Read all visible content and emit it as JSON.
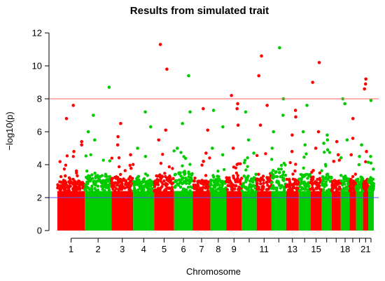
{
  "chart_data": {
    "type": "scatter",
    "subtype": "manhattan",
    "title": "Results from simulated trait",
    "xlabel": "Chromosome",
    "ylabel": "−log10(p)",
    "ylim": [
      0,
      12
    ],
    "y_ticks": [
      0,
      2,
      4,
      6,
      8,
      10,
      12
    ],
    "grid": false,
    "colors": {
      "odd": "#ff0000",
      "even": "#00cc00",
      "significance_line": "#ff6666",
      "suggestive_line": "#5555ff"
    },
    "significance_threshold": 8,
    "suggestive_threshold": 2,
    "x_tick_labels": [
      "1",
      "2",
      "3",
      "4",
      "5",
      "6",
      "7",
      "8",
      "9",
      "11",
      "13",
      "15",
      "18",
      "21"
    ],
    "chromosomes": [
      {
        "chr": 1,
        "labeled": true,
        "dense_max": 3.0,
        "top_hits": [
          7.6,
          6.8,
          5.4,
          5.2,
          4.8
        ]
      },
      {
        "chr": 2,
        "labeled": true,
        "dense_max": 3.3,
        "top_hits": [
          8.7,
          7.0,
          6.0,
          5.5
        ]
      },
      {
        "chr": 3,
        "labeled": true,
        "dense_max": 3.2,
        "top_hits": [
          6.5,
          5.7,
          5.2,
          4.6
        ]
      },
      {
        "chr": 4,
        "labeled": true,
        "dense_max": 3.0,
        "top_hits": [
          7.2,
          6.3,
          5.0,
          4.5
        ]
      },
      {
        "chr": 5,
        "labeled": true,
        "dense_max": 3.3,
        "top_hits": [
          11.3,
          9.8,
          6.1,
          5.5
        ]
      },
      {
        "chr": 6,
        "labeled": true,
        "dense_max": 3.5,
        "top_hits": [
          9.4,
          7.2,
          6.5,
          5.0
        ]
      },
      {
        "chr": 7,
        "labeled": true,
        "dense_max": 3.0,
        "top_hits": [
          7.4,
          6.1,
          4.7,
          4.2
        ]
      },
      {
        "chr": 8,
        "labeled": true,
        "dense_max": 3.1,
        "top_hits": [
          7.3,
          6.3,
          5.0,
          4.6
        ]
      },
      {
        "chr": 9,
        "labeled": true,
        "dense_max": 3.2,
        "top_hits": [
          8.2,
          7.7,
          7.4,
          6.4,
          5.0
        ]
      },
      {
        "chr": 10,
        "labeled": false,
        "dense_max": 3.3,
        "top_hits": [
          7.2,
          5.5,
          4.7
        ]
      },
      {
        "chr": 11,
        "labeled": true,
        "dense_max": 3.2,
        "top_hits": [
          10.6,
          9.4,
          7.6,
          6.4
        ]
      },
      {
        "chr": 12,
        "labeled": false,
        "dense_max": 3.6,
        "top_hits": [
          11.1,
          8.0,
          7.0,
          6.0
        ]
      },
      {
        "chr": 13,
        "labeled": true,
        "dense_max": 3.1,
        "top_hits": [
          7.3,
          6.9,
          5.8,
          4.8
        ]
      },
      {
        "chr": 14,
        "labeled": false,
        "dense_max": 3.4,
        "top_hits": [
          7.6,
          6.0,
          5.2
        ]
      },
      {
        "chr": 15,
        "labeled": true,
        "dense_max": 3.2,
        "top_hits": [
          10.2,
          9.0,
          6.0,
          5.0
        ]
      },
      {
        "chr": 16,
        "labeled": false,
        "dense_max": 3.4,
        "top_hits": [
          5.8,
          5.5,
          5.3,
          4.9
        ]
      },
      {
        "chr": 17,
        "labeled": false,
        "dense_max": 3.0,
        "top_hits": [
          5.4,
          4.6,
          4.2
        ]
      },
      {
        "chr": 18,
        "labeled": true,
        "dense_max": 3.2,
        "top_hits": [
          8.0,
          7.7,
          5.5
        ]
      },
      {
        "chr": 19,
        "labeled": false,
        "dense_max": 3.0,
        "top_hits": [
          6.8,
          5.6,
          4.6
        ]
      },
      {
        "chr": 20,
        "labeled": false,
        "dense_max": 3.1,
        "top_hits": [
          5.2,
          4.5,
          4.0
        ]
      },
      {
        "chr": 21,
        "labeled": true,
        "dense_max": 3.0,
        "top_hits": [
          9.2,
          8.9,
          8.6,
          4.8
        ]
      },
      {
        "chr": 22,
        "labeled": false,
        "dense_max": 3.2,
        "top_hits": [
          7.9,
          4.5,
          4.1
        ]
      }
    ]
  }
}
